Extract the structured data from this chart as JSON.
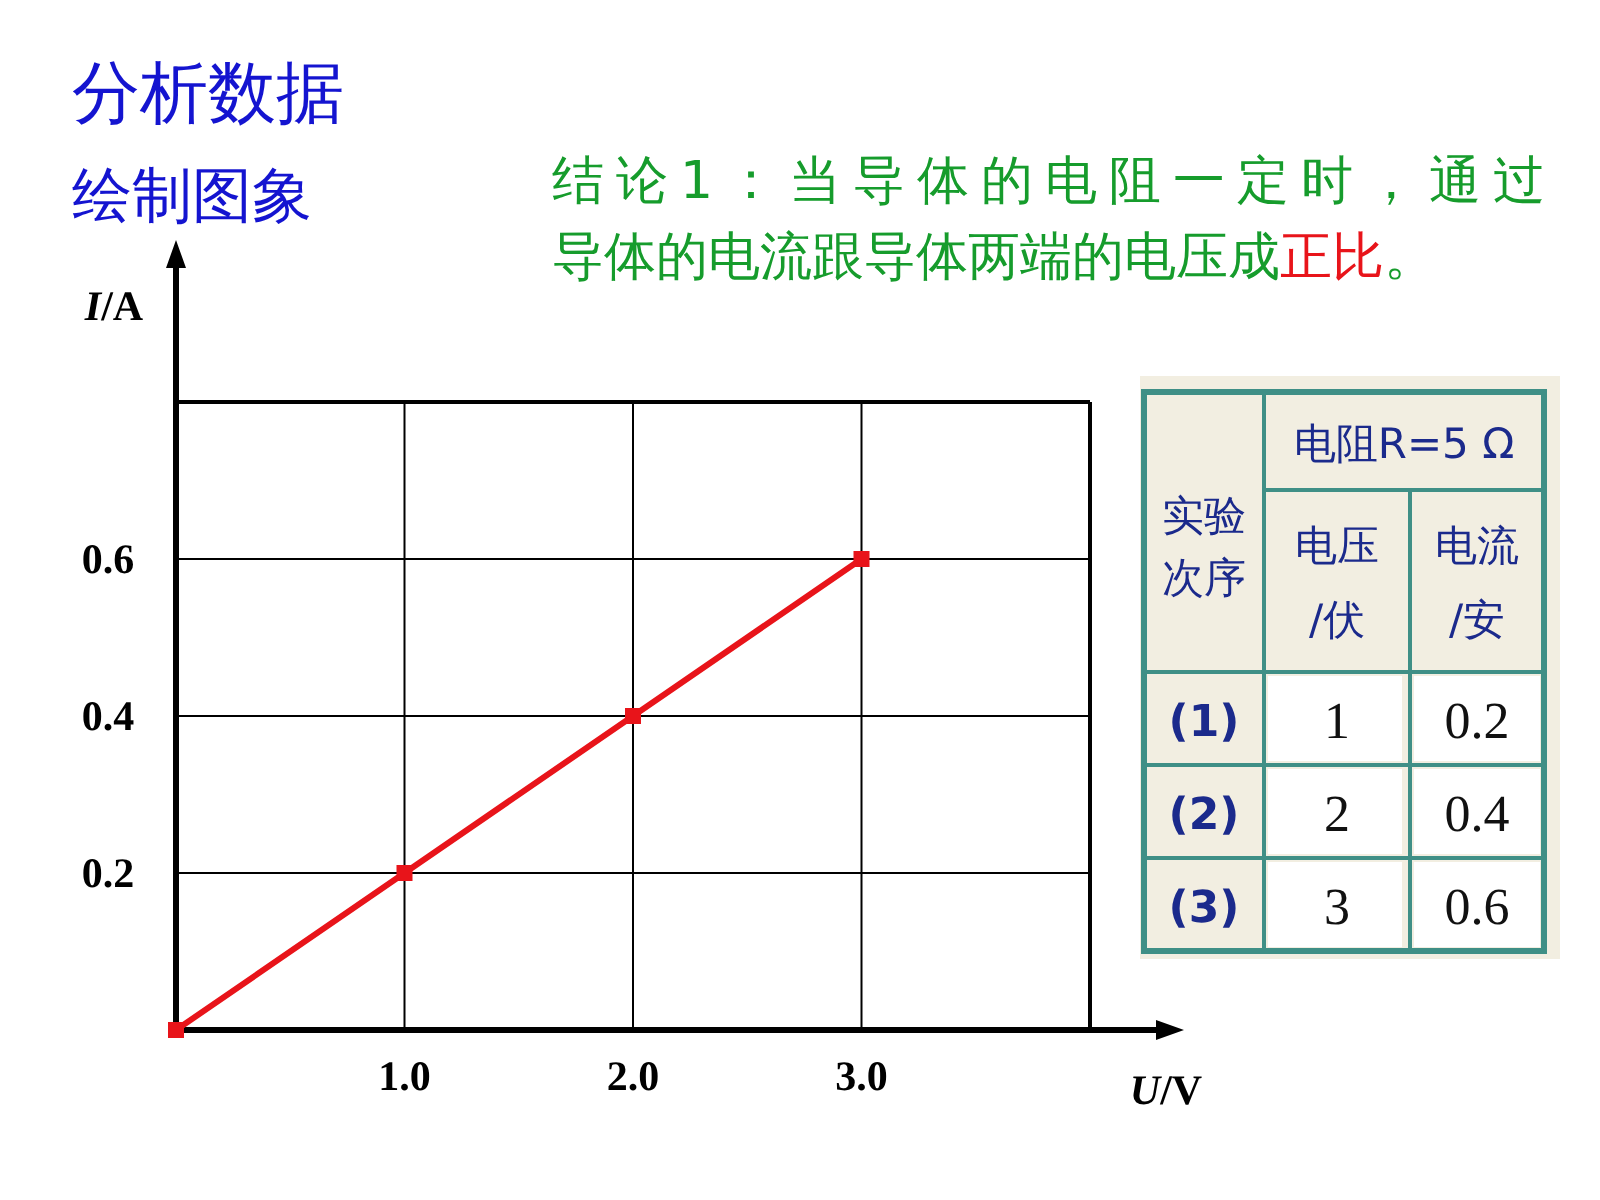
{
  "chart_data": [
    {
      "type": "line",
      "title": "分析数据",
      "subtitle": "绘制图象",
      "xlabel": "U/V",
      "ylabel": "I/A",
      "annotations": [
        "结论1：当导体的电阻一定时，通过导体的电流跟导体两端的电压成",
        "正比",
        "。"
      ],
      "x": [
        0,
        1,
        2,
        3
      ],
      "series": [
        {
          "color": "#e8141a",
          "values": [
            0,
            0.2,
            0.4,
            0.6
          ]
        }
      ],
      "xlim": [
        0,
        4
      ],
      "xticks": [
        {
          "value": 1,
          "label": "1.0"
        },
        {
          "value": 2,
          "label": "2.0"
        },
        {
          "value": 3,
          "label": "3.0"
        },
        {
          "value": 4,
          "label": null
        }
      ],
      "ylim": [
        0,
        0.8
      ],
      "yticks": [
        0.2,
        0.4,
        0.6,
        {
          "value": 0.8,
          "label": null
        }
      ],
      "grid": true,
      "marker": "square",
      "line_style": "solid"
    },
    {
      "type": "other",
      "title": "电阻R=5 Ω",
      "ylabel": "实验次序",
      "categories": [
        "电压/伏",
        "电流/安"
      ],
      "y_categories": [
        "(1)",
        "(2)",
        "(3)"
      ],
      "cell_labels": [
        [
          "1",
          "0.2"
        ],
        [
          "2",
          "0.4"
        ],
        [
          "3",
          "0.6"
        ]
      ]
    }
  ]
}
